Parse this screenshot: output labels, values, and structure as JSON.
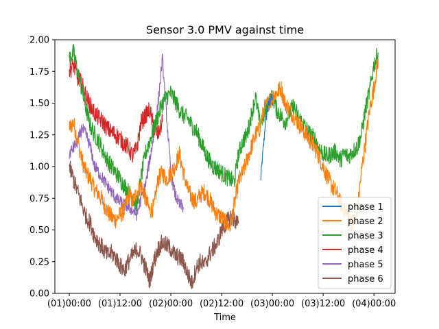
{
  "chart_data": {
    "type": "line",
    "title": "Sensor 3.0 PMV against  time",
    "xlabel": "Time",
    "ylabel": "",
    "x_unit": "hours",
    "xlim": [
      -3.4,
      77
    ],
    "ylim": [
      0.0,
      2.0
    ],
    "x_ticks": [
      {
        "value": 0,
        "label": "(01)00:00"
      },
      {
        "value": 12,
        "label": "(01)12:00"
      },
      {
        "value": 24,
        "label": "(02)00:00"
      },
      {
        "value": 36,
        "label": "(02)12:00"
      },
      {
        "value": 48,
        "label": "(03)00:00"
      },
      {
        "value": 60,
        "label": "(03)12:00"
      },
      {
        "value": 72,
        "label": "(04)00:00"
      }
    ],
    "y_ticks": [
      0.0,
      0.25,
      0.5,
      0.75,
      1.0,
      1.25,
      1.5,
      1.75,
      2.0
    ],
    "y_tick_labels": [
      "0.00",
      "0.25",
      "0.50",
      "0.75",
      "1.00",
      "1.25",
      "1.50",
      "1.75",
      "2.00"
    ],
    "legend_position": "lower-right",
    "series": [
      {
        "name": "phase 1",
        "color": "#1f77b4",
        "noise": 0.04,
        "x": [
          45.2,
          45.6,
          46.0,
          46.3,
          46.6,
          47.0,
          47.5,
          48.0
        ],
        "y": [
          0.88,
          1.05,
          1.2,
          1.33,
          1.4,
          1.48,
          1.52,
          1.55
        ]
      },
      {
        "name": "phase 2",
        "color": "#ff7f0e",
        "noise": 0.07,
        "x": [
          0,
          1,
          2,
          3,
          4,
          5,
          6,
          7,
          8,
          9,
          10,
          11,
          12,
          13,
          14,
          15,
          16,
          17,
          18,
          19,
          20,
          21,
          22,
          23,
          24,
          25,
          26,
          27,
          28,
          29,
          30,
          31,
          32,
          33,
          34,
          35,
          36,
          37,
          38,
          39,
          40,
          41,
          42,
          43,
          44,
          45,
          46,
          47,
          48,
          49,
          50,
          51,
          52,
          53,
          54,
          55,
          56,
          57,
          58,
          59,
          60,
          61,
          62,
          63,
          64,
          65,
          66,
          67,
          68,
          69,
          70,
          71,
          72,
          73
        ],
        "y": [
          1.3,
          1.35,
          1.2,
          1.05,
          0.95,
          0.9,
          0.82,
          0.78,
          0.72,
          0.65,
          0.6,
          0.58,
          0.62,
          0.65,
          0.78,
          0.72,
          0.8,
          0.85,
          0.75,
          0.65,
          0.68,
          0.9,
          0.95,
          0.9,
          0.95,
          1.0,
          1.1,
          0.95,
          0.82,
          0.75,
          0.72,
          0.78,
          0.8,
          0.75,
          0.68,
          0.62,
          0.6,
          0.55,
          0.52,
          0.7,
          0.88,
          0.95,
          1.05,
          1.15,
          1.25,
          1.3,
          1.45,
          1.5,
          1.55,
          1.58,
          1.62,
          1.5,
          1.45,
          1.4,
          1.35,
          1.3,
          1.25,
          1.2,
          1.15,
          1.08,
          1.0,
          0.92,
          0.85,
          0.8,
          0.72,
          0.65,
          0.6,
          0.55,
          0.62,
          0.95,
          1.2,
          1.45,
          1.62,
          1.85
        ]
      },
      {
        "name": "phase 3",
        "color": "#2ca02c",
        "noise": 0.07,
        "x": [
          0,
          1,
          2,
          3,
          4,
          5,
          6,
          7,
          8,
          9,
          10,
          11,
          12,
          13,
          14,
          15,
          16,
          17,
          18,
          19,
          20,
          21,
          22,
          23,
          24,
          25,
          26,
          27,
          28,
          29,
          30,
          31,
          32,
          33,
          34,
          35,
          36,
          37,
          38,
          39,
          40,
          41,
          42,
          43,
          44,
          45,
          46,
          47,
          48,
          49,
          50,
          51,
          52,
          53,
          54,
          55,
          56,
          57,
          58,
          59,
          60,
          61,
          62,
          63,
          64,
          65,
          66,
          67,
          68,
          69,
          70,
          71,
          72,
          73
        ],
        "y": [
          1.85,
          1.9,
          1.75,
          1.6,
          1.45,
          1.32,
          1.25,
          1.2,
          1.12,
          1.05,
          1.0,
          0.95,
          0.9,
          0.85,
          0.8,
          0.75,
          0.7,
          0.92,
          1.1,
          1.2,
          1.3,
          1.4,
          1.5,
          1.55,
          1.58,
          1.52,
          1.45,
          1.4,
          1.38,
          1.32,
          1.28,
          1.2,
          1.12,
          1.05,
          1.0,
          0.98,
          0.95,
          0.92,
          0.9,
          0.88,
          1.1,
          1.2,
          1.25,
          1.4,
          1.55,
          1.35,
          1.4,
          1.5,
          1.55,
          1.45,
          1.4,
          1.35,
          1.42,
          1.48,
          1.4,
          1.35,
          1.3,
          1.25,
          1.22,
          1.15,
          1.1,
          1.08,
          1.1,
          1.12,
          1.05,
          1.1,
          1.08,
          1.12,
          1.15,
          1.25,
          1.45,
          1.6,
          1.8,
          1.9
        ]
      },
      {
        "name": "phase 4",
        "color": "#d62728",
        "noise": 0.07,
        "x": [
          0,
          1,
          2,
          3,
          4,
          5,
          6,
          7,
          8,
          9,
          10,
          11,
          12,
          13,
          14,
          15,
          16,
          17,
          18,
          19,
          20,
          21,
          22
        ],
        "y": [
          1.75,
          1.8,
          1.7,
          1.65,
          1.55,
          1.48,
          1.42,
          1.38,
          1.35,
          1.3,
          1.27,
          1.25,
          1.22,
          1.18,
          1.15,
          1.08,
          1.15,
          1.35,
          1.4,
          1.45,
          1.3,
          1.25,
          1.35
        ]
      },
      {
        "name": "phase 5",
        "color": "#9467bd",
        "noise": 0.05,
        "x": [
          0,
          1,
          2,
          3,
          4,
          5,
          6,
          7,
          8,
          9,
          10,
          11,
          12,
          13,
          14,
          15,
          16,
          17,
          18,
          19,
          20,
          21,
          22,
          23,
          24,
          25,
          26,
          27
        ],
        "y": [
          1.1,
          1.15,
          1.2,
          1.3,
          1.25,
          1.15,
          1.0,
          0.95,
          0.9,
          0.85,
          0.8,
          0.75,
          0.72,
          0.7,
          0.68,
          0.65,
          0.62,
          0.75,
          0.85,
          1.05,
          1.25,
          1.5,
          1.85,
          1.4,
          0.95,
          0.78,
          0.7,
          0.68
        ]
      },
      {
        "name": "phase 6",
        "color": "#8c564b",
        "noise": 0.07,
        "x": [
          0,
          1,
          2,
          3,
          4,
          5,
          6,
          7,
          8,
          9,
          10,
          11,
          12,
          13,
          14,
          15,
          16,
          17,
          18,
          19,
          20,
          21,
          22,
          23,
          24,
          25,
          26,
          27,
          28,
          29,
          30,
          31,
          32,
          33,
          34,
          35,
          36,
          37,
          38,
          39,
          40
        ],
        "y": [
          1.0,
          0.9,
          0.8,
          0.7,
          0.6,
          0.55,
          0.45,
          0.4,
          0.35,
          0.3,
          0.32,
          0.28,
          0.22,
          0.18,
          0.25,
          0.3,
          0.35,
          0.3,
          0.2,
          0.1,
          0.25,
          0.35,
          0.4,
          0.38,
          0.35,
          0.3,
          0.28,
          0.25,
          0.15,
          0.08,
          0.2,
          0.25,
          0.22,
          0.3,
          0.35,
          0.4,
          0.5,
          0.55,
          0.6,
          0.58,
          0.55
        ]
      }
    ]
  }
}
